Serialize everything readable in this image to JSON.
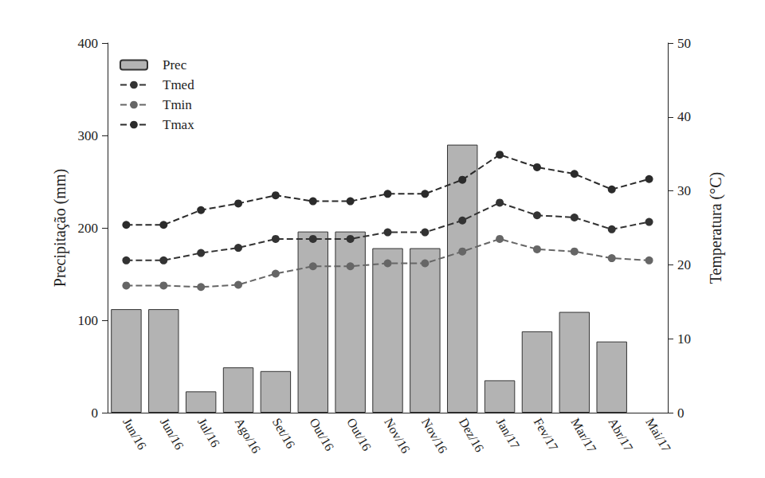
{
  "chart_data": {
    "type": "bar",
    "categories": [
      "Jun/16",
      "Jun/16",
      "Jul/16",
      "Ago/16",
      "Set/16",
      "Out/16",
      "Out/16",
      "Nov/16",
      "Nov/16",
      "Dez/16",
      "Jan/17",
      "Fev/17",
      "Mar/17",
      "Abr/17",
      "Mai/17"
    ],
    "y_label": "Precipitação (mm)",
    "y2_label": "Temperatura (°C)",
    "ylim": [
      0,
      400
    ],
    "yticks": [
      0,
      100,
      200,
      300,
      400
    ],
    "y2lim": [
      0,
      50
    ],
    "y2ticks": [
      0,
      10,
      20,
      30,
      40,
      50
    ],
    "grid": false,
    "legend": "upper left",
    "series": [
      {
        "name": "Prec",
        "type": "bar",
        "color": "#b3b3b3",
        "values": [
          112,
          112,
          23,
          49,
          45,
          196,
          196,
          178,
          178,
          290,
          35,
          88,
          109,
          77,
          null
        ]
      },
      {
        "name": "Tmed",
        "type": "line",
        "axis": "y2",
        "color": "#333333",
        "marker": "circle",
        "line_style": "dashed",
        "values": [
          20.6,
          20.6,
          21.6,
          22.3,
          23.5,
          23.5,
          23.5,
          24.4,
          24.4,
          26.0,
          28.4,
          26.7,
          26.4,
          24.8,
          25.8
        ]
      },
      {
        "name": "Tmin",
        "type": "line",
        "axis": "y2",
        "color": "#666666",
        "marker": "circle",
        "line_style": "dashed",
        "values": [
          17.2,
          17.2,
          17.0,
          17.3,
          18.8,
          19.8,
          19.8,
          20.2,
          20.2,
          21.8,
          23.5,
          22.1,
          21.8,
          20.9,
          20.6
        ]
      },
      {
        "name": "Tmax",
        "type": "line",
        "axis": "y2",
        "color": "#2b2b2b",
        "marker": "circle",
        "line_style": "dashed",
        "values": [
          25.4,
          25.4,
          27.4,
          28.3,
          29.4,
          28.6,
          28.6,
          29.6,
          29.6,
          31.5,
          34.9,
          33.2,
          32.3,
          30.2,
          31.6
        ]
      }
    ]
  }
}
